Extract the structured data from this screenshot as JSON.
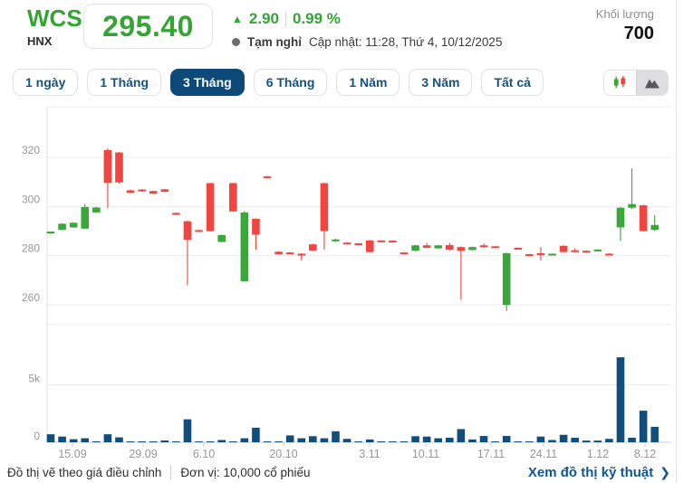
{
  "header": {
    "ticker": "WCS",
    "exchange": "HNX",
    "price": "295.40",
    "up_arrow_icon": "▲",
    "change": "2.90",
    "change_pct": "0.99 %",
    "status": "Tạm nghỉ",
    "updated": "Cập nhật: 11:28, Thứ 4, 10/12/2025",
    "volume_label": "Khối lượng",
    "volume_value": "700",
    "accent_green": "#34a434"
  },
  "toolbar": {
    "ranges": [
      {
        "label": "1 ngày",
        "active": false
      },
      {
        "label": "1 Tháng",
        "active": false
      },
      {
        "label": "3 Tháng",
        "active": true
      },
      {
        "label": "6 Tháng",
        "active": false
      },
      {
        "label": "1 Năm",
        "active": false
      },
      {
        "label": "3 Năm",
        "active": false
      },
      {
        "label": "Tất cả",
        "active": false
      }
    ],
    "chart_type": {
      "candlestick_selected": true,
      "area_selected": false
    }
  },
  "chart_data": {
    "type": "candlestick+volume-bar",
    "title": "WCS 3-month daily price chart",
    "up_color": "#3aa73a",
    "down_color": "#f1463f",
    "volume_color": "#124e7c",
    "price_axis": {
      "ticks": [
        320,
        300,
        280,
        260
      ],
      "range": [
        257,
        341
      ]
    },
    "volume_axis": {
      "ticks": [
        {
          "label": "5k",
          "value": 5000
        },
        {
          "label": "0",
          "value": 0
        }
      ]
    },
    "x_ticks": [
      {
        "label": "15.09",
        "px": 80
      },
      {
        "label": "29.09",
        "px": 158
      },
      {
        "label": "6.10",
        "px": 225
      },
      {
        "label": "20.10",
        "px": 313
      },
      {
        "label": "3.11",
        "px": 408
      },
      {
        "label": "10.11",
        "px": 470
      },
      {
        "label": "17.11",
        "px": 542
      },
      {
        "label": "24.11",
        "px": 600
      },
      {
        "label": "1.12",
        "px": 660
      },
      {
        "label": "8.12",
        "px": 712
      }
    ],
    "columns": [
      "open",
      "high",
      "low",
      "close",
      "volume"
    ],
    "candles": [
      [
        289.2,
        290.0,
        288.8,
        289.8,
        700
      ],
      [
        290.5,
        293.2,
        290.3,
        293.0,
        500
      ],
      [
        291.5,
        293.6,
        291.3,
        293.4,
        270
      ],
      [
        291.0,
        301.0,
        290.8,
        299.8,
        350
      ],
      [
        297.6,
        299.8,
        297.4,
        299.6,
        60
      ],
      [
        323.0,
        323.6,
        299.5,
        309.6,
        700
      ],
      [
        322.0,
        322.3,
        309.3,
        309.8,
        430
      ],
      [
        306.6,
        306.8,
        305.4,
        305.6,
        30
      ],
      [
        306.9,
        307.1,
        306.0,
        306.2,
        60
      ],
      [
        306.3,
        306.5,
        305.0,
        305.2,
        70
      ],
      [
        307.0,
        307.2,
        305.8,
        306.0,
        160
      ],
      [
        297.4,
        297.6,
        296.6,
        296.8,
        70
      ],
      [
        294.0,
        294.2,
        268.0,
        286.5,
        2000
      ],
      [
        290.4,
        290.6,
        289.6,
        289.8,
        70
      ],
      [
        309.5,
        309.7,
        289.8,
        290.0,
        70
      ],
      [
        285.6,
        288.6,
        285.4,
        288.4,
        200
      ],
      [
        309.5,
        309.7,
        297.8,
        298.0,
        70
      ],
      [
        269.6,
        298.2,
        269.4,
        297.6,
        350
      ],
      [
        295.0,
        295.2,
        282.4,
        288.6,
        1270
      ],
      [
        312.3,
        312.5,
        311.7,
        311.9,
        20
      ],
      [
        281.6,
        281.8,
        280.4,
        280.6,
        70
      ],
      [
        281.3,
        281.5,
        280.7,
        280.9,
        600
      ],
      [
        280.8,
        281.0,
        278.0,
        280.4,
        350
      ],
      [
        284.6,
        284.8,
        281.9,
        282.1,
        530
      ],
      [
        309.5,
        309.7,
        282.4,
        290.0,
        350
      ],
      [
        285.9,
        287.0,
        285.7,
        286.6,
        960
      ],
      [
        285.3,
        285.5,
        284.7,
        284.9,
        300
      ],
      [
        285.0,
        285.2,
        284.4,
        284.6,
        50
      ],
      [
        286.2,
        286.4,
        281.3,
        281.5,
        250
      ],
      [
        286.2,
        286.4,
        285.8,
        286.0,
        30
      ],
      [
        286.1,
        286.3,
        285.7,
        285.9,
        30
      ],
      [
        281.3,
        281.5,
        280.7,
        280.9,
        40
      ],
      [
        282.0,
        284.4,
        281.8,
        284.2,
        530
      ],
      [
        284.2,
        285.2,
        283.0,
        283.2,
        500
      ],
      [
        283.0,
        284.4,
        282.8,
        284.2,
        350
      ],
      [
        284.3,
        285.2,
        282.2,
        282.4,
        400
      ],
      [
        283.5,
        283.7,
        262.0,
        282.0,
        1150
      ],
      [
        282.3,
        283.7,
        282.1,
        283.5,
        250
      ],
      [
        284.2,
        285.0,
        283.2,
        283.8,
        550
      ],
      [
        283.8,
        284.0,
        283.2,
        283.4,
        30
      ],
      [
        260.0,
        281.2,
        257.5,
        281.0,
        550
      ],
      [
        283.2,
        283.4,
        282.8,
        283.0,
        30
      ],
      [
        280.6,
        280.8,
        280.2,
        280.4,
        30
      ],
      [
        281.0,
        283.5,
        278.0,
        280.2,
        500
      ],
      [
        280.5,
        280.9,
        280.3,
        280.8,
        200
      ],
      [
        284.0,
        284.2,
        281.3,
        281.5,
        650
      ],
      [
        282.2,
        283.0,
        281.4,
        281.8,
        400
      ],
      [
        282.0,
        282.2,
        281.6,
        281.8,
        150
      ],
      [
        282.2,
        282.6,
        282.0,
        282.5,
        150
      ],
      [
        280.8,
        281.0,
        280.4,
        280.6,
        300
      ],
      [
        291.5,
        299.7,
        286.0,
        299.5,
        7400
      ],
      [
        299.5,
        315.5,
        299.0,
        301.0,
        400
      ],
      [
        300.5,
        300.7,
        289.8,
        290.0,
        2750
      ],
      [
        290.5,
        296.5,
        290.0,
        292.5,
        1350
      ]
    ]
  },
  "footer": {
    "note1": "Đồ thị vẽ theo giá điều chỉnh",
    "note2": "Đơn vị: 10,000 cổ phiếu",
    "link_label": "Xem đồ thị kỹ thuật",
    "chevron_icon": "❯"
  }
}
